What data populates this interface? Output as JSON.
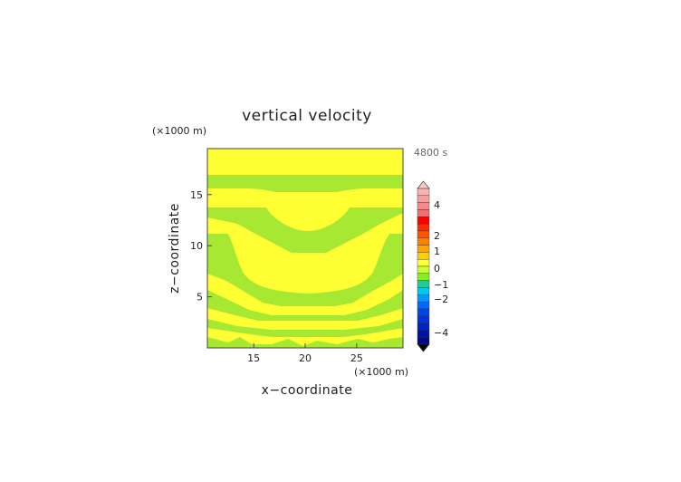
{
  "chart_data": {
    "type": "heatmap",
    "title": "vertical velocity",
    "time_label": "4800 s",
    "xlabel": "x−coordinate",
    "ylabel": "z−coordinate",
    "x_unit": "(×1000 m)",
    "y_unit": "(×1000 m)",
    "xlim": [
      10.5,
      29.5
    ],
    "ylim": [
      0,
      19.5
    ],
    "x_ticks": [
      15,
      20,
      25
    ],
    "y_ticks": [
      5,
      10,
      15
    ],
    "field_classes": {
      "background": "weak positive (0 to 0.5)",
      "bands": "weak negative (-0.5 to 0)"
    },
    "colorbar": {
      "labels": [
        "4",
        "2",
        "1",
        "0",
        "−1",
        "−2",
        "−4"
      ],
      "top_arrow_color": "#f6c8c8",
      "bottom_arrow_color": "#000000",
      "segments": [
        {
          "color": "#f8b4b4"
        },
        {
          "color": "#f4a0a0"
        },
        {
          "color": "#f28c8c"
        },
        {
          "color": "#ef7070"
        },
        {
          "color": "#ff0000"
        },
        {
          "color": "#ff2a00"
        },
        {
          "color": "#ff5500"
        },
        {
          "color": "#ff8000"
        },
        {
          "color": "#ffa600"
        },
        {
          "color": "#ffd000"
        },
        {
          "color": "#ffff33"
        },
        {
          "color": "#ccff33"
        },
        {
          "color": "#88ee22"
        },
        {
          "color": "#22cc99"
        },
        {
          "color": "#00c8e8"
        },
        {
          "color": "#0099ff"
        },
        {
          "color": "#0066ff"
        },
        {
          "color": "#0044ee"
        },
        {
          "color": "#0033dd"
        },
        {
          "color": "#0022cc"
        },
        {
          "color": "#0011aa"
        },
        {
          "color": "#000a88"
        }
      ]
    }
  },
  "colors": {
    "positive": "#ffff33",
    "negative": "#a6e832"
  }
}
